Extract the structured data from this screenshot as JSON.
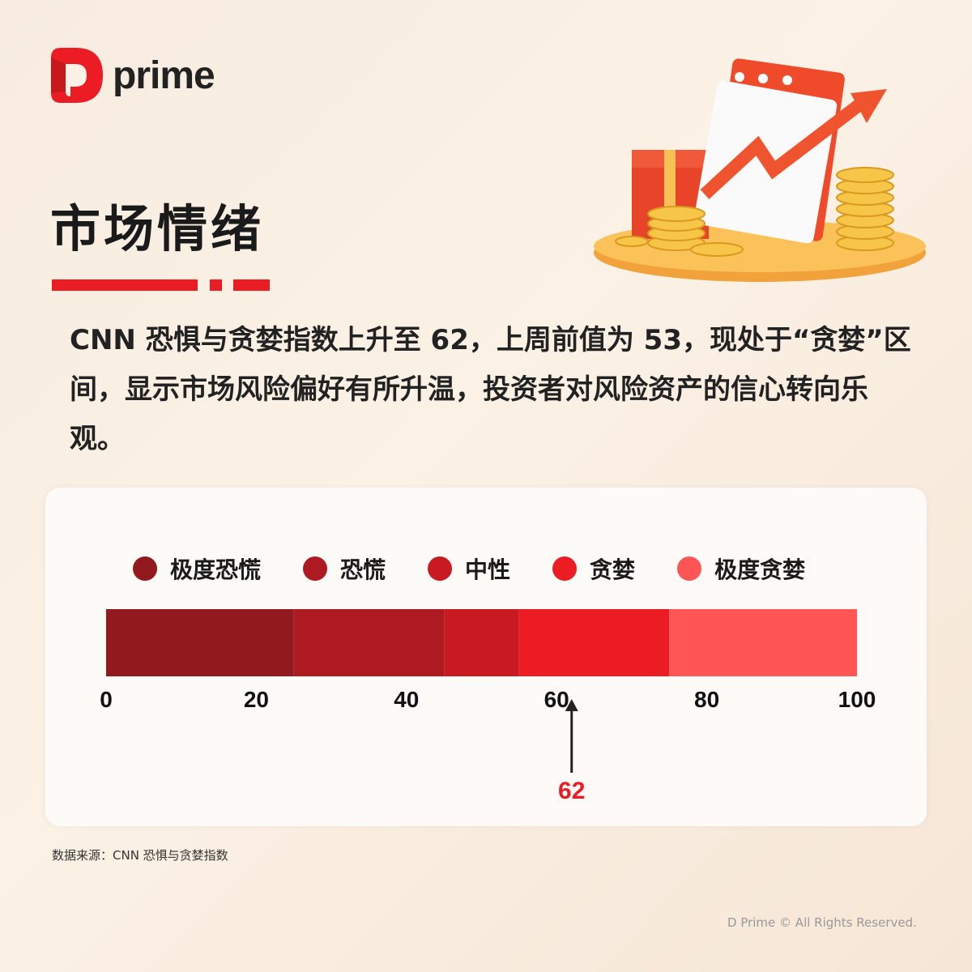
{
  "brand": {
    "logo_text": "prime",
    "accent": "#ec1c24"
  },
  "title": "市场情绪",
  "paragraph": "CNN 恐惧与贪婪指数上升至 62，上周前值为 53，现处于“贪婪”区间，显示市场风险偏好有所升温，投资者对风险资产的信心转向乐观。",
  "chart_data": {
    "type": "bar",
    "subtype": "gauge-bar",
    "segments": [
      {
        "label": "极度恐慌",
        "from": 0,
        "to": 25,
        "color": "#921a1f"
      },
      {
        "label": "恐慌",
        "from": 25,
        "to": 45,
        "color": "#ae1a22"
      },
      {
        "label": "中性",
        "from": 45,
        "to": 55,
        "color": "#c91a22"
      },
      {
        "label": "贪婪",
        "from": 55,
        "to": 75,
        "color": "#ec1c24"
      },
      {
        "label": "极度贪婪",
        "from": 75,
        "to": 100,
        "color": "#ff5555"
      }
    ],
    "ticks": [
      "0",
      "20",
      "40",
      "60",
      "80",
      "100"
    ],
    "xlim": [
      0,
      100
    ],
    "indicator": {
      "value": 62,
      "label": "62",
      "color": "#ec1c24"
    },
    "legend": "top"
  },
  "source": "数据来源：CNN 恐惧与贪婪指数",
  "footer": "D Prime © All Rights Reserved."
}
